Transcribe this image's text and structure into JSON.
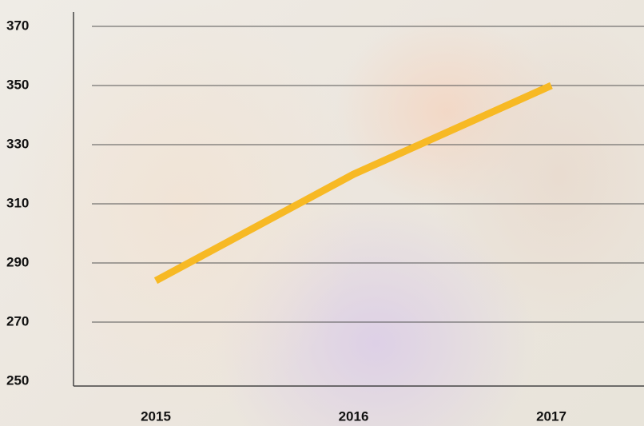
{
  "chart_data": {
    "type": "line",
    "categories": [
      "2015",
      "2016",
      "2017"
    ],
    "series": [
      {
        "color": "#f7b924",
        "values": [
          284,
          320,
          350
        ]
      }
    ],
    "ylim": [
      250,
      370
    ],
    "yticks": [
      250,
      270,
      290,
      310,
      330,
      350,
      370
    ],
    "grid": true
  }
}
